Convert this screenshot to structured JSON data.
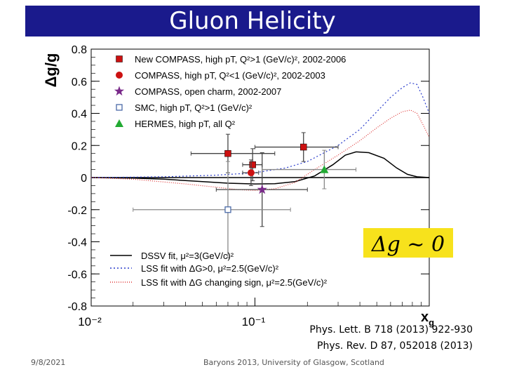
{
  "slide": {
    "title": "Gluon Helicity",
    "date": "9/8/2021",
    "footer": "Baryons 2013, University of Glasgow, Scotland",
    "references": [
      "Phys. Lett. B 718 (2013) 922-930",
      "Phys. Rev. D 87, 052018 (2013)"
    ],
    "colors": {
      "title_bg": "#1a1a8c",
      "title_text": "#ffffff",
      "highlight_box": "#f7e21c"
    }
  },
  "chart_data": {
    "type": "scatter",
    "xlabel": "x_g",
    "ylabel": "Δg/g",
    "xscale": "log",
    "xlim": [
      0.0115,
      1.0
    ],
    "ylim": [
      -0.8,
      0.8
    ],
    "xtick_labels": [
      "10⁻²",
      "10⁻¹"
    ],
    "ytick_labels": [
      "0.8",
      "0.6",
      "0.4",
      "0.2",
      "0",
      "-0.2",
      "-0.4",
      "-0.6",
      "-0.8"
    ],
    "annotation": "Δg ~ 0",
    "series": [
      {
        "name": "New COMPASS, high pT, Q²>1 (GeV/c)², 2002-2006",
        "marker": "square",
        "color": "#cc1111",
        "points": [
          {
            "x": 0.07,
            "y": 0.15,
            "xerr": [
              0.043,
              0.13
            ],
            "yerr": 0.12
          },
          {
            "x": 0.097,
            "y": 0.08,
            "xerr": [
              0.085,
              0.11
            ],
            "yerr": 0.1
          },
          {
            "x": 0.19,
            "y": 0.19,
            "xerr": [
              0.1,
              0.3
            ],
            "yerr": 0.09
          }
        ]
      },
      {
        "name": "COMPASS, high pT, Q²<1 (GeV/c)², 2002-2003",
        "marker": "circle",
        "color": "#cc1111",
        "points": [
          {
            "x": 0.095,
            "y": 0.03,
            "xerr": [
              0.085,
              0.105
            ],
            "yerr": 0.08
          }
        ]
      },
      {
        "name": "COMPASS, open charm, 2002-2007",
        "marker": "star",
        "color": "#7a2a8a",
        "points": [
          {
            "x": 0.11,
            "y": -0.075,
            "xerr": [
              0.06,
              0.2
            ],
            "yerr": 0.23
          }
        ]
      },
      {
        "name": "SMC, high pT, Q²>1 (GeV/c)²",
        "marker": "open-square",
        "color": "#4a6aa8",
        "points": [
          {
            "x": 0.07,
            "y": -0.2,
            "xerr": [
              0.02,
              0.16
            ],
            "yerr": 0.3
          }
        ]
      },
      {
        "name": "HERMES, high pT, all Q²",
        "marker": "triangle",
        "color": "#22aa33",
        "points": [
          {
            "x": 0.25,
            "y": 0.05,
            "xerr": [
              0.11,
              0.38
            ],
            "yerr": 0.12
          }
        ]
      }
    ],
    "curves": [
      {
        "name": "DSSV fit, μ²=3(GeV/c)²",
        "color": "#000000",
        "dash": "none",
        "points": [
          [
            0.0115,
            0.0
          ],
          [
            0.02,
            -0.003
          ],
          [
            0.03,
            -0.01
          ],
          [
            0.05,
            -0.025
          ],
          [
            0.07,
            -0.035
          ],
          [
            0.1,
            -0.04
          ],
          [
            0.13,
            -0.038
          ],
          [
            0.17,
            -0.025
          ],
          [
            0.22,
            0.01
          ],
          [
            0.28,
            0.08
          ],
          [
            0.33,
            0.14
          ],
          [
            0.38,
            0.16
          ],
          [
            0.45,
            0.155
          ],
          [
            0.55,
            0.12
          ],
          [
            0.65,
            0.06
          ],
          [
            0.75,
            0.02
          ],
          [
            0.85,
            0.005
          ],
          [
            1.0,
            0.0
          ]
        ]
      },
      {
        "name": "LSS fit with ΔG>0, μ²=2.5(GeV/c)²",
        "color": "#2a3ccc",
        "dash": "2,3",
        "points": [
          [
            0.0115,
            0.0
          ],
          [
            0.03,
            0.005
          ],
          [
            0.06,
            0.015
          ],
          [
            0.1,
            0.03
          ],
          [
            0.15,
            0.06
          ],
          [
            0.2,
            0.1
          ],
          [
            0.3,
            0.2
          ],
          [
            0.4,
            0.3
          ],
          [
            0.5,
            0.41
          ],
          [
            0.6,
            0.5
          ],
          [
            0.7,
            0.56
          ],
          [
            0.78,
            0.59
          ],
          [
            0.85,
            0.58
          ],
          [
            0.92,
            0.5
          ],
          [
            1.0,
            0.4
          ]
        ]
      },
      {
        "name": "LSS fit with ΔG changing sign, μ²=2.5(GeV/c)²",
        "color": "#dd3333",
        "dash": "1,2",
        "points": [
          [
            0.0115,
            0.0
          ],
          [
            0.02,
            -0.01
          ],
          [
            0.04,
            -0.04
          ],
          [
            0.06,
            -0.06
          ],
          [
            0.08,
            -0.075
          ],
          [
            0.1,
            -0.08
          ],
          [
            0.13,
            -0.07
          ],
          [
            0.17,
            -0.03
          ],
          [
            0.22,
            0.05
          ],
          [
            0.3,
            0.14
          ],
          [
            0.4,
            0.23
          ],
          [
            0.5,
            0.31
          ],
          [
            0.6,
            0.37
          ],
          [
            0.7,
            0.41
          ],
          [
            0.78,
            0.42
          ],
          [
            0.85,
            0.4
          ],
          [
            0.92,
            0.33
          ],
          [
            1.0,
            0.25
          ]
        ]
      }
    ]
  }
}
